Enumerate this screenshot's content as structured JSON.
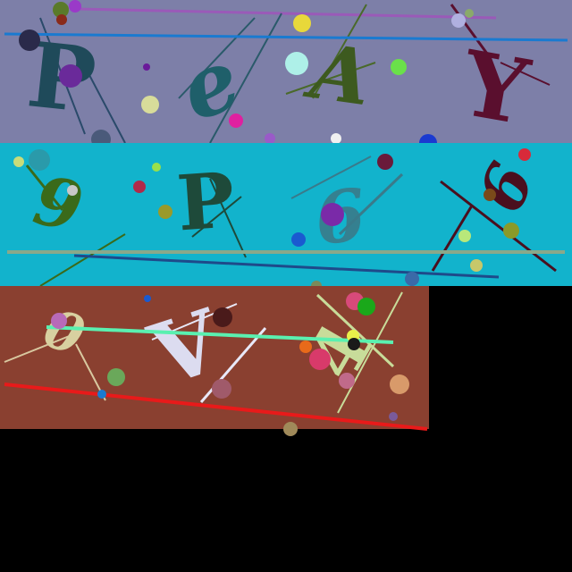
{
  "panels": [
    {
      "name": "captcha-panel-1",
      "background": "#7d7fa8",
      "glyphs": [
        {
          "text": "P",
          "color": "#1f4a5a"
        },
        {
          "text": "e",
          "color": "#1f5f6a"
        },
        {
          "text": "A",
          "color": "#3d5a1f"
        },
        {
          "text": "Y",
          "color": "#5a0f2e"
        }
      ]
    },
    {
      "name": "captcha-panel-2",
      "background": "#12b3cc",
      "glyphs": [
        {
          "text": "9",
          "color": "#3a6a1a"
        },
        {
          "text": "P",
          "color": "#1e4a3a"
        },
        {
          "text": "6",
          "color": "#3a7a8a"
        },
        {
          "text": "6",
          "color": "#4a0f1e"
        }
      ]
    },
    {
      "name": "captcha-panel-3",
      "background": "#8a4030",
      "glyphs": [
        {
          "text": "0",
          "color": "#d8d0a0"
        },
        {
          "text": "V",
          "color": "#dcdcf0"
        },
        {
          "text": "4",
          "color": "#c8dc9a"
        }
      ]
    }
  ]
}
